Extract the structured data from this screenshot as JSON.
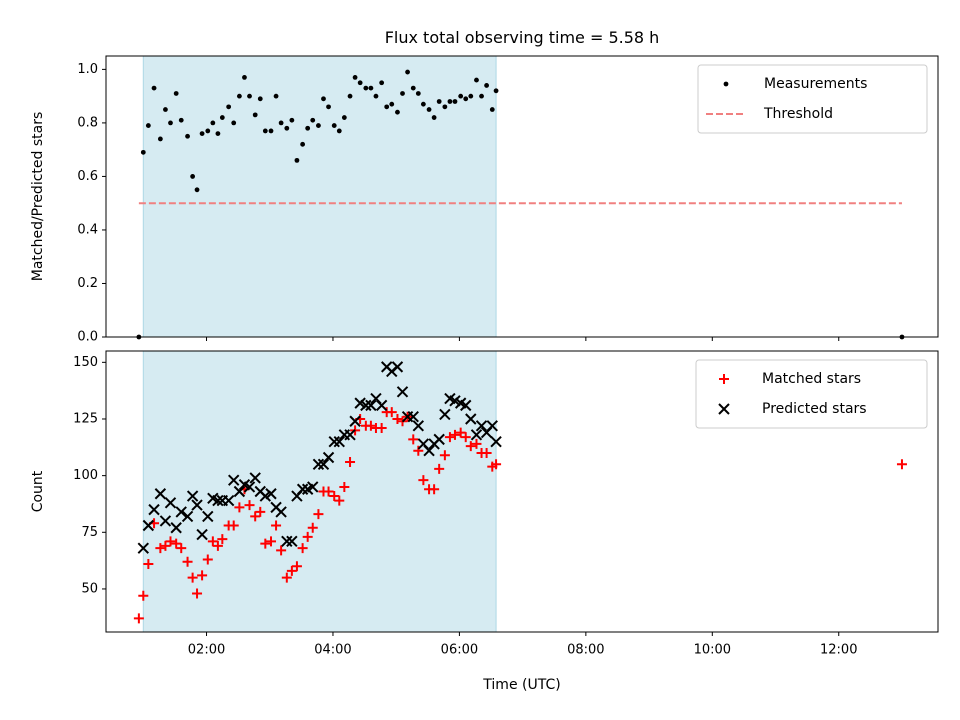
{
  "title": "Flux total observing time = 5.58 h",
  "colors": {
    "shade": "#add8e6",
    "measurement": "#000000",
    "threshold": "#f08080",
    "matched": "#ff0000",
    "predicted": "#000000"
  },
  "chart_data": [
    {
      "type": "scatter",
      "id": "ratio",
      "ylabel": "Matched/Predicted stars",
      "xlim": [
        0.41,
        13.57
      ],
      "ylim": [
        0,
        1.05
      ],
      "yticks": [
        0.0,
        0.2,
        0.4,
        0.6,
        0.8,
        1.0
      ],
      "ytick_labels": [
        "0.0",
        "0.2",
        "0.4",
        "0.6",
        "0.8",
        "1.0"
      ],
      "shaded_interval": [
        1.0,
        6.58
      ],
      "threshold": {
        "y": 0.5,
        "x_range": [
          0.93,
          13.0
        ],
        "label": "Threshold"
      },
      "legend": {
        "position": "top-right",
        "entries": [
          "Measurements",
          "Threshold"
        ]
      },
      "series": [
        {
          "name": "Measurements",
          "points": [
            [
              0.93,
              0.0
            ],
            [
              1.0,
              0.69
            ],
            [
              1.08,
              0.79
            ],
            [
              1.17,
              0.93
            ],
            [
              1.27,
              0.74
            ],
            [
              1.35,
              0.85
            ],
            [
              1.43,
              0.8
            ],
            [
              1.52,
              0.91
            ],
            [
              1.6,
              0.81
            ],
            [
              1.7,
              0.75
            ],
            [
              1.78,
              0.6
            ],
            [
              1.85,
              0.55
            ],
            [
              1.93,
              0.76
            ],
            [
              2.02,
              0.77
            ],
            [
              2.1,
              0.8
            ],
            [
              2.18,
              0.76
            ],
            [
              2.25,
              0.82
            ],
            [
              2.35,
              0.86
            ],
            [
              2.43,
              0.8
            ],
            [
              2.52,
              0.9
            ],
            [
              2.6,
              0.97
            ],
            [
              2.68,
              0.9
            ],
            [
              2.77,
              0.83
            ],
            [
              2.85,
              0.89
            ],
            [
              2.93,
              0.77
            ],
            [
              3.02,
              0.77
            ],
            [
              3.1,
              0.9
            ],
            [
              3.18,
              0.8
            ],
            [
              3.27,
              0.78
            ],
            [
              3.35,
              0.81
            ],
            [
              3.43,
              0.66
            ],
            [
              3.52,
              0.72
            ],
            [
              3.6,
              0.78
            ],
            [
              3.68,
              0.81
            ],
            [
              3.77,
              0.79
            ],
            [
              3.85,
              0.89
            ],
            [
              3.93,
              0.86
            ],
            [
              4.02,
              0.79
            ],
            [
              4.1,
              0.77
            ],
            [
              4.18,
              0.82
            ],
            [
              4.27,
              0.9
            ],
            [
              4.35,
              0.97
            ],
            [
              4.43,
              0.95
            ],
            [
              4.52,
              0.93
            ],
            [
              4.6,
              0.93
            ],
            [
              4.68,
              0.9
            ],
            [
              4.77,
              0.95
            ],
            [
              4.85,
              0.86
            ],
            [
              4.93,
              0.87
            ],
            [
              5.02,
              0.84
            ],
            [
              5.1,
              0.91
            ],
            [
              5.18,
              0.99
            ],
            [
              5.27,
              0.93
            ],
            [
              5.35,
              0.91
            ],
            [
              5.43,
              0.87
            ],
            [
              5.52,
              0.85
            ],
            [
              5.6,
              0.82
            ],
            [
              5.68,
              0.88
            ],
            [
              5.77,
              0.86
            ],
            [
              5.85,
              0.88
            ],
            [
              5.93,
              0.88
            ],
            [
              6.02,
              0.9
            ],
            [
              6.1,
              0.89
            ],
            [
              6.18,
              0.9
            ],
            [
              6.27,
              0.96
            ],
            [
              6.35,
              0.9
            ],
            [
              6.43,
              0.94
            ],
            [
              6.52,
              0.85
            ],
            [
              6.58,
              0.92
            ],
            [
              13.0,
              0.0
            ]
          ]
        }
      ]
    },
    {
      "type": "scatter",
      "id": "counts",
      "xlabel": "Time (UTC)",
      "ylabel": "Count",
      "xlim": [
        0.41,
        13.57
      ],
      "ylim": [
        31,
        155
      ],
      "yticks": [
        50,
        75,
        100,
        125,
        150
      ],
      "ytick_labels": [
        "50",
        "75",
        "100",
        "125",
        "150"
      ],
      "xticks": [
        2,
        4,
        6,
        8,
        10,
        12
      ],
      "xtick_labels": [
        "02:00",
        "04:00",
        "06:00",
        "08:00",
        "10:00",
        "12:00"
      ],
      "shaded_interval": [
        1.0,
        6.58
      ],
      "legend": {
        "position": "top-right",
        "entries": [
          "Matched stars",
          "Predicted stars"
        ]
      },
      "series": [
        {
          "name": "Matched stars",
          "marker": "plus",
          "points": [
            [
              0.93,
              37
            ],
            [
              1.0,
              47
            ],
            [
              1.08,
              61
            ],
            [
              1.17,
              79
            ],
            [
              1.27,
              68
            ],
            [
              1.35,
              69
            ],
            [
              1.43,
              71
            ],
            [
              1.52,
              70
            ],
            [
              1.6,
              68
            ],
            [
              1.7,
              62
            ],
            [
              1.78,
              55
            ],
            [
              1.85,
              48
            ],
            [
              1.93,
              56
            ],
            [
              2.02,
              63
            ],
            [
              2.1,
              71
            ],
            [
              2.18,
              69
            ],
            [
              2.25,
              72
            ],
            [
              2.35,
              78
            ],
            [
              2.43,
              78
            ],
            [
              2.52,
              86
            ],
            [
              2.6,
              94
            ],
            [
              2.68,
              87
            ],
            [
              2.77,
              82
            ],
            [
              2.85,
              84
            ],
            [
              2.93,
              70
            ],
            [
              3.02,
              71
            ],
            [
              3.1,
              78
            ],
            [
              3.18,
              67
            ],
            [
              3.27,
              55
            ],
            [
              3.35,
              58
            ],
            [
              3.43,
              60
            ],
            [
              3.52,
              68
            ],
            [
              3.6,
              73
            ],
            [
              3.68,
              77
            ],
            [
              3.77,
              83
            ],
            [
              3.85,
              93
            ],
            [
              3.93,
              93
            ],
            [
              4.02,
              91
            ],
            [
              4.1,
              89
            ],
            [
              4.18,
              95
            ],
            [
              4.27,
              106
            ],
            [
              4.35,
              120
            ],
            [
              4.43,
              125
            ],
            [
              4.52,
              122
            ],
            [
              4.6,
              122
            ],
            [
              4.68,
              121
            ],
            [
              4.77,
              121
            ],
            [
              4.85,
              128
            ],
            [
              4.93,
              128
            ],
            [
              5.02,
              125
            ],
            [
              5.1,
              124
            ],
            [
              5.18,
              126
            ],
            [
              5.27,
              116
            ],
            [
              5.35,
              111
            ],
            [
              5.43,
              98
            ],
            [
              5.52,
              94
            ],
            [
              5.6,
              94
            ],
            [
              5.68,
              103
            ],
            [
              5.77,
              109
            ],
            [
              5.85,
              117
            ],
            [
              5.93,
              118
            ],
            [
              6.02,
              119
            ],
            [
              6.1,
              117
            ],
            [
              6.18,
              113
            ],
            [
              6.27,
              114
            ],
            [
              6.35,
              110
            ],
            [
              6.43,
              110
            ],
            [
              6.52,
              104
            ],
            [
              6.58,
              105
            ],
            [
              13.0,
              105
            ]
          ]
        },
        {
          "name": "Predicted stars",
          "marker": "x",
          "points": [
            [
              1.0,
              68
            ],
            [
              1.08,
              78
            ],
            [
              1.17,
              85
            ],
            [
              1.27,
              92
            ],
            [
              1.35,
              80
            ],
            [
              1.43,
              88
            ],
            [
              1.52,
              77
            ],
            [
              1.6,
              84
            ],
            [
              1.7,
              82
            ],
            [
              1.78,
              91
            ],
            [
              1.85,
              87
            ],
            [
              1.93,
              74
            ],
            [
              2.02,
              82
            ],
            [
              2.1,
              90
            ],
            [
              2.18,
              89
            ],
            [
              2.25,
              89
            ],
            [
              2.35,
              89
            ],
            [
              2.43,
              98
            ],
            [
              2.52,
              93
            ],
            [
              2.6,
              96
            ],
            [
              2.68,
              95
            ],
            [
              2.77,
              99
            ],
            [
              2.85,
              93
            ],
            [
              2.93,
              91
            ],
            [
              3.02,
              92
            ],
            [
              3.1,
              86
            ],
            [
              3.18,
              84
            ],
            [
              3.27,
              71
            ],
            [
              3.35,
              71
            ],
            [
              3.43,
              91
            ],
            [
              3.52,
              94
            ],
            [
              3.6,
              94
            ],
            [
              3.68,
              95
            ],
            [
              3.77,
              105
            ],
            [
              3.85,
              105
            ],
            [
              3.93,
              108
            ],
            [
              4.02,
              115
            ],
            [
              4.1,
              115
            ],
            [
              4.18,
              118
            ],
            [
              4.27,
              118
            ],
            [
              4.35,
              124
            ],
            [
              4.43,
              132
            ],
            [
              4.52,
              131
            ],
            [
              4.6,
              131
            ],
            [
              4.68,
              134
            ],
            [
              4.77,
              131
            ],
            [
              4.85,
              148
            ],
            [
              4.93,
              146
            ],
            [
              5.02,
              148
            ],
            [
              5.1,
              137
            ],
            [
              5.18,
              126
            ],
            [
              5.27,
              126
            ],
            [
              5.35,
              122
            ],
            [
              5.43,
              114
            ],
            [
              5.52,
              111
            ],
            [
              5.6,
              114
            ],
            [
              5.68,
              116
            ],
            [
              5.77,
              127
            ],
            [
              5.85,
              134
            ],
            [
              5.93,
              133
            ],
            [
              6.02,
              132
            ],
            [
              6.1,
              131
            ],
            [
              6.18,
              125
            ],
            [
              6.27,
              118
            ],
            [
              6.35,
              122
            ],
            [
              6.43,
              119
            ],
            [
              6.52,
              122
            ],
            [
              6.58,
              115
            ]
          ]
        }
      ]
    }
  ]
}
